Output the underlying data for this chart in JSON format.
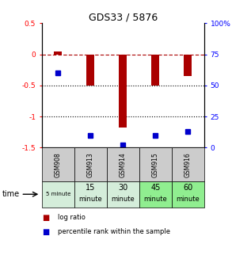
{
  "title": "GDS33 / 5876",
  "samples": [
    "GSM908",
    "GSM913",
    "GSM914",
    "GSM915",
    "GSM916"
  ],
  "time_labels_top": [
    "15",
    "30",
    "45",
    "60"
  ],
  "time_labels_bot": [
    "minute",
    "minute",
    "minute",
    "minute"
  ],
  "time_label_first": "5 minute",
  "time_colors": [
    "#d4edda",
    "#d4edda",
    "#d4edda",
    "#90ee90",
    "#90ee90"
  ],
  "sample_bg_color": "#cccccc",
  "log_ratios": [
    0.05,
    -0.5,
    -1.18,
    -0.5,
    -0.35
  ],
  "percentile_ranks": [
    60,
    10,
    2,
    10,
    13
  ],
  "bar_color": "#aa0000",
  "dot_color": "#0000cc",
  "ylim_left": [
    -1.5,
    0.5
  ],
  "ylim_right": [
    0,
    100
  ],
  "yticks_left": [
    -1.5,
    -1.0,
    -0.5,
    0.0,
    0.5
  ],
  "ytick_labels_left": [
    "-1.5",
    "-1",
    "-0.5",
    "0",
    "0.5"
  ],
  "yticks_right": [
    0,
    25,
    50,
    75,
    100
  ],
  "ytick_labels_right": [
    "0",
    "25",
    "50",
    "75",
    "100%"
  ],
  "dotted_lines": [
    -0.5,
    -1.0
  ],
  "legend_items": [
    {
      "label": "log ratio",
      "color": "#aa0000"
    },
    {
      "label": "percentile rank within the sample",
      "color": "#0000cc"
    }
  ]
}
